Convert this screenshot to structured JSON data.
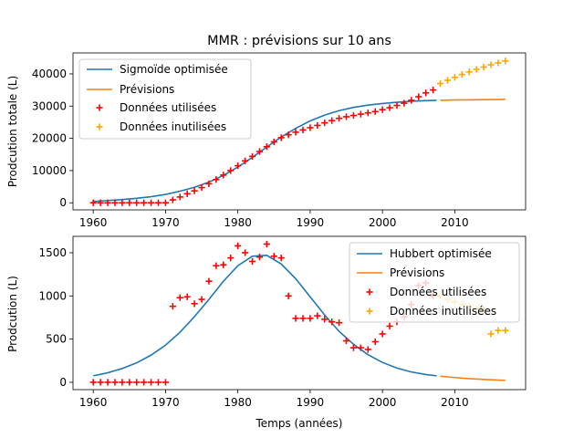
{
  "chart_data": [
    {
      "type": "line",
      "title": "MMR : prévisions sur 10 ans",
      "xlabel": "",
      "ylabel": "Prodcution totale (L)",
      "xlim": [
        1957.2,
        2019.8
      ],
      "ylim": [
        -2200,
        46500
      ],
      "xticks": [
        1960,
        1970,
        1980,
        1990,
        2000,
        2010
      ],
      "yticks": [
        0,
        10000,
        20000,
        30000,
        40000
      ],
      "legend_position": "upper left",
      "colors": {
        "fit": "#1f77b4",
        "forecast": "#ff7f0e",
        "used": "#ff0000",
        "unused": "#ffa500"
      },
      "series": [
        {
          "name": "Sigmoïde optimisée",
          "kind": "line",
          "x": [
            1960,
            1962,
            1964,
            1966,
            1968,
            1970,
            1972,
            1974,
            1976,
            1978,
            1980,
            1982,
            1984,
            1986,
            1988,
            1990,
            1992,
            1994,
            1996,
            1998,
            2000,
            2002,
            2004,
            2006,
            2007.5
          ],
          "values": [
            400,
            700,
            1000,
            1400,
            1900,
            2600,
            3600,
            4800,
            6400,
            8500,
            11100,
            14100,
            17300,
            20400,
            23100,
            25400,
            27200,
            28600,
            29600,
            30300,
            30800,
            31200,
            31500,
            31700,
            31800
          ]
        },
        {
          "name": "Prévisions",
          "kind": "line",
          "x": [
            2008,
            2010,
            2012,
            2014,
            2016,
            2017
          ],
          "values": [
            31800,
            31900,
            31950,
            32000,
            32050,
            32100
          ]
        },
        {
          "name": "Données utilisées",
          "kind": "scatter",
          "x": [
            1960,
            1961,
            1962,
            1963,
            1964,
            1965,
            1966,
            1967,
            1968,
            1969,
            1970,
            1971,
            1972,
            1973,
            1974,
            1975,
            1976,
            1977,
            1978,
            1979,
            1980,
            1981,
            1982,
            1983,
            1984,
            1985,
            1986,
            1987,
            1988,
            1989,
            1990,
            1991,
            1992,
            1993,
            1994,
            1995,
            1996,
            1997,
            1998,
            1999,
            2000,
            2001,
            2002,
            2003,
            2004,
            2005,
            2006,
            2007
          ],
          "values": [
            0,
            0,
            0,
            0,
            0,
            0,
            0,
            0,
            0,
            0,
            0,
            900,
            1800,
            2800,
            3700,
            4700,
            5900,
            7200,
            8600,
            10000,
            11500,
            13000,
            14400,
            15900,
            17400,
            18900,
            20200,
            21100,
            21900,
            22600,
            23300,
            24000,
            24800,
            25500,
            26200,
            26700,
            27100,
            27500,
            27900,
            28300,
            28900,
            29500,
            30200,
            30900,
            31800,
            32900,
            34100,
            35000
          ]
        },
        {
          "name": "Données inutilisées",
          "kind": "scatter",
          "x": [
            2008,
            2009,
            2010,
            2011,
            2012,
            2013,
            2014,
            2015,
            2016,
            2017
          ],
          "values": [
            37000,
            38000,
            38900,
            39800,
            40600,
            41400,
            42100,
            42800,
            43400,
            44000
          ]
        }
      ]
    },
    {
      "type": "line",
      "title": "",
      "xlabel": "Temps (années)",
      "ylabel": "Prodcution (L)",
      "xlim": [
        1957.2,
        2019.8
      ],
      "ylim": [
        -85,
        1690
      ],
      "xticks": [
        1960,
        1970,
        1980,
        1990,
        2000,
        2010
      ],
      "yticks": [
        0,
        500,
        1000,
        1500
      ],
      "legend_position": "upper right",
      "colors": {
        "fit": "#1f77b4",
        "forecast": "#ff7f0e",
        "used": "#ff0000",
        "unused": "#ffa500"
      },
      "series": [
        {
          "name": "Hubbert optimisée",
          "kind": "line",
          "x": [
            1960,
            1962,
            1964,
            1966,
            1968,
            1970,
            1972,
            1974,
            1976,
            1978,
            1980,
            1982,
            1984,
            1986,
            1988,
            1990,
            1992,
            1994,
            1996,
            1998,
            2000,
            2002,
            2004,
            2006,
            2007.5
          ],
          "values": [
            75,
            110,
            160,
            225,
            315,
            430,
            580,
            760,
            960,
            1170,
            1350,
            1460,
            1470,
            1370,
            1200,
            990,
            780,
            590,
            440,
            320,
            230,
            165,
            120,
            90,
            75
          ]
        },
        {
          "name": "Prévisions",
          "kind": "line",
          "x": [
            2008,
            2010,
            2012,
            2014,
            2016,
            2017
          ],
          "values": [
            70,
            55,
            42,
            33,
            26,
            22
          ]
        },
        {
          "name": "Données utilisées",
          "kind": "scatter",
          "x": [
            1960,
            1961,
            1962,
            1963,
            1964,
            1965,
            1966,
            1967,
            1968,
            1969,
            1970,
            1971,
            1972,
            1973,
            1974,
            1975,
            1976,
            1977,
            1978,
            1979,
            1980,
            1981,
            1982,
            1983,
            1984,
            1985,
            1986,
            1987,
            1988,
            1989,
            1990,
            1991,
            1992,
            1993,
            1994,
            1995,
            1996,
            1997,
            1998,
            1999,
            2000,
            2001,
            2002,
            2003,
            2004,
            2005,
            2006,
            2007
          ],
          "values": [
            0,
            0,
            0,
            0,
            0,
            0,
            0,
            0,
            0,
            0,
            0,
            880,
            980,
            990,
            910,
            960,
            1170,
            1350,
            1360,
            1440,
            1580,
            1500,
            1400,
            1450,
            1600,
            1460,
            1440,
            1000,
            740,
            740,
            740,
            770,
            730,
            700,
            690,
            480,
            400,
            400,
            380,
            470,
            560,
            650,
            700,
            760,
            900,
            1120,
            1150,
            1000
          ]
        },
        {
          "name": "Données inutilisées",
          "kind": "scatter",
          "x": [
            2008,
            2009,
            2010,
            2011,
            2012,
            2013,
            2014,
            2015,
            2016,
            2017
          ],
          "values": [
            1000,
            960,
            930,
            900,
            880,
            850,
            830,
            560,
            600,
            600
          ]
        }
      ]
    }
  ]
}
